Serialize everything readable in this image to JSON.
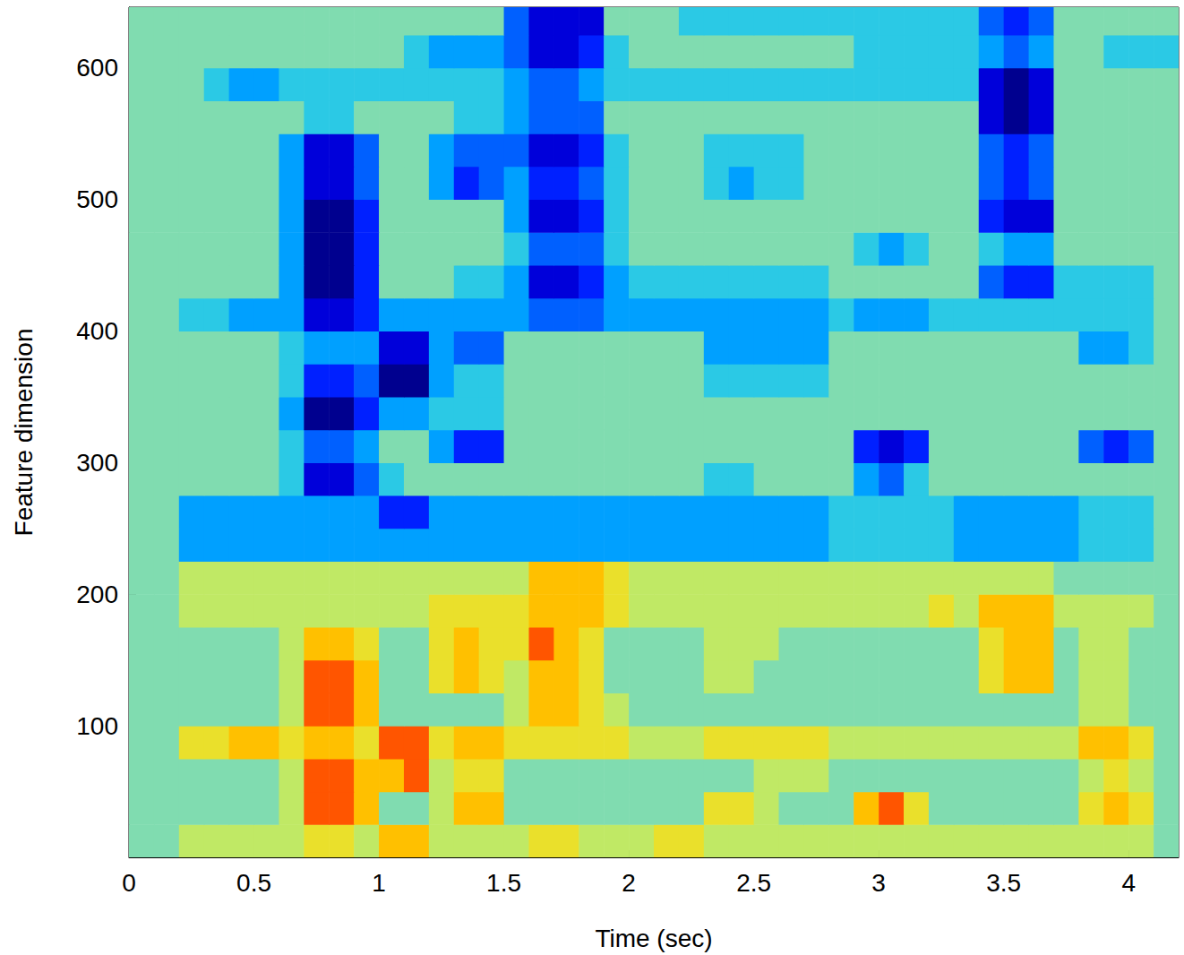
{
  "chart_data": {
    "type": "heatmap",
    "x_label": "Time (sec)",
    "y_label": "Feature dimension",
    "xlim": [
      0,
      4.2
    ],
    "ylim": [
      0,
      646
    ],
    "xticks": [
      0,
      0.5,
      1,
      1.5,
      2,
      2.5,
      3,
      3.5,
      4
    ],
    "yticks": [
      100,
      200,
      300,
      400,
      500,
      600
    ],
    "x_bins": [
      0,
      0.1,
      0.2,
      0.3,
      0.4,
      0.5,
      0.6,
      0.7,
      0.8,
      0.9,
      1,
      1.1,
      1.2,
      1.3,
      1.4,
      1.5,
      1.6,
      1.7,
      1.8,
      1.9,
      2,
      2.1,
      2.2,
      2.3,
      2.4,
      2.5,
      2.6,
      2.7,
      2.8,
      2.9,
      3,
      3.1,
      3.2,
      3.3,
      3.4,
      3.5,
      3.6,
      3.7,
      3.8,
      3.9,
      4,
      4.1,
      4.2
    ],
    "y_bins": [
      0,
      25,
      50,
      75,
      100,
      125,
      150,
      175,
      200,
      225,
      250,
      275,
      300,
      325,
      350,
      375,
      400,
      425,
      450,
      475,
      500,
      525,
      550,
      575,
      600,
      625,
      650
    ],
    "zlim": [
      -3,
      3
    ],
    "cells": [
      [
        0,
        0,
        0.5,
        0.5,
        0.5,
        0.5,
        0.5,
        1,
        1,
        0.5,
        1.5,
        1.5,
        0.5,
        0.5,
        0.5,
        0.5,
        1,
        1,
        0.5,
        0.5,
        0.5,
        1,
        1,
        0.5,
        0.5,
        0.5,
        0.5,
        0.5,
        0.5,
        0.5,
        0.5,
        0.5,
        0.5,
        0.5,
        0.5,
        0.5,
        0.5,
        0.5,
        0.5,
        0.5,
        0.5,
        0
      ],
      [
        0,
        0,
        0,
        0,
        0,
        0,
        0.5,
        2,
        2,
        1.5,
        0,
        0,
        0.5,
        1.5,
        1.5,
        0,
        0,
        0,
        0,
        0,
        0,
        0,
        0,
        1,
        1,
        0.5,
        0,
        0,
        0,
        1.5,
        2,
        1,
        0,
        0,
        0,
        0,
        0,
        0,
        1,
        1.5,
        1,
        0
      ],
      [
        0,
        0,
        0,
        0,
        0,
        0,
        0.5,
        2,
        2,
        1.5,
        1.5,
        2,
        0.5,
        1,
        1,
        0,
        0,
        0,
        0,
        0,
        0,
        0,
        0,
        0,
        0,
        0.5,
        0.5,
        0.5,
        0,
        0,
        0,
        0,
        0,
        0,
        0,
        0,
        0,
        0,
        0.5,
        1,
        0.5,
        0
      ],
      [
        0,
        0,
        1,
        1,
        1.5,
        1.5,
        1,
        1.5,
        1.5,
        1,
        2,
        2,
        1,
        1.5,
        1.5,
        1,
        1,
        1,
        1,
        1,
        0.5,
        0.5,
        0.5,
        1,
        1,
        1,
        1,
        1,
        0.5,
        0.5,
        0.5,
        0.5,
        0.5,
        0.5,
        0.5,
        0.5,
        0.5,
        0.5,
        1.5,
        1.5,
        1,
        0
      ],
      [
        0,
        0,
        0,
        0,
        0,
        0,
        0.5,
        2,
        2,
        1.5,
        0,
        0,
        0,
        0,
        0,
        0.5,
        1.5,
        1.5,
        1,
        0.5,
        0,
        0,
        0,
        0,
        0,
        0,
        0,
        0,
        0,
        0,
        0,
        0,
        0,
        0,
        0,
        0,
        0,
        0,
        0.5,
        0.5,
        0,
        0
      ],
      [
        0,
        0,
        0,
        0,
        0,
        0,
        0.5,
        2,
        2,
        1.5,
        0,
        0,
        1,
        1.5,
        1,
        0.5,
        1.5,
        1.5,
        1,
        0,
        0,
        0,
        0,
        0.5,
        0.5,
        0,
        0,
        0,
        0,
        0,
        0,
        0,
        0,
        0,
        1,
        1.5,
        1.5,
        0,
        0.5,
        0.5,
        0,
        0
      ],
      [
        0,
        0,
        0,
        0,
        0,
        0,
        0.5,
        1.5,
        1.5,
        1,
        0,
        0,
        1,
        1.5,
        1,
        1,
        2,
        1.5,
        1,
        0,
        0,
        0,
        0,
        0.5,
        0.5,
        0.5,
        0,
        0,
        0,
        0,
        0,
        0,
        0,
        0,
        1,
        1.5,
        1.5,
        0,
        0.5,
        0.5,
        0,
        0
      ],
      [
        0,
        0,
        0.5,
        0.5,
        0.5,
        0.5,
        0.5,
        0.5,
        0.5,
        0.5,
        0.5,
        0.5,
        1,
        1,
        1,
        1,
        1.5,
        1.5,
        1.5,
        1,
        0.5,
        0.5,
        0.5,
        0.5,
        0.5,
        0.5,
        0.5,
        0.5,
        0.5,
        0.5,
        0.5,
        0.5,
        1,
        0.5,
        1.5,
        1.5,
        1.5,
        0.5,
        0.5,
        0.5,
        0.5,
        0
      ],
      [
        0,
        0,
        0.5,
        0.5,
        0.5,
        0.5,
        0.5,
        0.5,
        0.5,
        0.5,
        0.5,
        0.5,
        0.5,
        0.5,
        0.5,
        0.5,
        1.5,
        1.5,
        1.5,
        1,
        0.5,
        0.5,
        0.5,
        0.5,
        0.5,
        0.5,
        0.5,
        0.5,
        0.5,
        0.5,
        0.5,
        0.5,
        0.5,
        0.5,
        0.5,
        0.5,
        0.5,
        0,
        0,
        0,
        0,
        0
      ],
      [
        0,
        0,
        -1,
        -1,
        -1,
        -1,
        -1,
        -1,
        -1,
        -1,
        -1,
        -1,
        -1,
        -1,
        -1,
        -1,
        -1,
        -1,
        -1,
        -1,
        -1,
        -1,
        -1,
        -1,
        -1,
        -1,
        -1,
        -1,
        -0.5,
        -0.5,
        -0.5,
        -0.5,
        -0.5,
        -1,
        -1,
        -1,
        -1,
        -1,
        -0.5,
        -0.5,
        -0.5,
        0
      ],
      [
        0,
        0,
        -1,
        -1,
        -1,
        -1,
        -1,
        -1,
        -1,
        -1,
        -2,
        -2,
        -1,
        -1,
        -1,
        -1,
        -1,
        -1,
        -1,
        -1,
        -1,
        -1,
        -1,
        -1,
        -1,
        -1,
        -1,
        -1,
        -0.5,
        -0.5,
        -0.5,
        -0.5,
        -0.5,
        -1,
        -1,
        -1,
        -1,
        -1,
        -0.5,
        -0.5,
        -0.5,
        0
      ],
      [
        0,
        0,
        0,
        0,
        0,
        0,
        -0.5,
        -2.5,
        -2.5,
        -1.5,
        -0.5,
        0,
        0,
        0,
        0,
        0,
        0,
        0,
        0,
        0,
        0,
        0,
        0,
        -0.5,
        -0.5,
        0,
        0,
        0,
        0,
        -1,
        -1.5,
        -0.5,
        0,
        0,
        0,
        0,
        0,
        0,
        0,
        0,
        0,
        0
      ],
      [
        0,
        0,
        0,
        0,
        0,
        0,
        -0.5,
        -1.5,
        -1.5,
        -1,
        0,
        0,
        -1,
        -2,
        -2,
        0,
        0,
        0,
        0,
        0,
        0,
        0,
        0,
        0,
        0,
        0,
        0,
        0,
        0,
        -2,
        -2.5,
        -2,
        0,
        0,
        0,
        0,
        0,
        0,
        -1.5,
        -2,
        -1.5,
        0
      ],
      [
        0,
        0,
        0,
        0,
        0,
        0,
        -1,
        -3,
        -3,
        -2,
        -1,
        -1,
        -0.5,
        -0.5,
        -0.5,
        0,
        0,
        0,
        0,
        0,
        0,
        0,
        0,
        0,
        0,
        0,
        0,
        0,
        0,
        0,
        0,
        0,
        0,
        0,
        0,
        0,
        0,
        0,
        0,
        0,
        0,
        0
      ],
      [
        0,
        0,
        0,
        0,
        0,
        0,
        -0.5,
        -2,
        -2,
        -1.5,
        -3,
        -3,
        -1,
        -0.5,
        -0.5,
        0,
        0,
        0,
        0,
        0,
        0,
        0,
        0,
        -0.5,
        -0.5,
        -0.5,
        -0.5,
        -0.5,
        0,
        0,
        0,
        0,
        0,
        0,
        0,
        0,
        0,
        0,
        0,
        0,
        0,
        0
      ],
      [
        0,
        0,
        0,
        0,
        0,
        0,
        -0.5,
        -1,
        -1,
        -1,
        -2.5,
        -2.5,
        -1,
        -1.5,
        -1.5,
        0,
        0,
        0,
        0,
        0,
        0,
        0,
        0,
        -1,
        -1,
        -1,
        -1,
        -1,
        0,
        0,
        0,
        0,
        0,
        0,
        0,
        0,
        0,
        0,
        -1,
        -1,
        -0.5,
        0
      ],
      [
        0,
        0,
        -0.5,
        -0.5,
        -1,
        -1,
        -1,
        -2.5,
        -2.5,
        -2,
        -1,
        -1,
        -1,
        -1,
        -1,
        -1,
        -1.5,
        -1.5,
        -1.5,
        -1,
        -1,
        -1,
        -1,
        -1,
        -1,
        -1,
        -1,
        -1,
        -0.5,
        -1,
        -1,
        -1,
        -0.5,
        -0.5,
        -0.5,
        -0.5,
        -0.5,
        -0.5,
        -0.5,
        -0.5,
        -0.5,
        0
      ],
      [
        0,
        0,
        0,
        0,
        0,
        0,
        -1,
        -3,
        -3,
        -2,
        0,
        0,
        0,
        -0.5,
        -0.5,
        -1,
        -2.5,
        -2.5,
        -2,
        -1,
        -0.5,
        -0.5,
        -0.5,
        -0.5,
        -0.5,
        -0.5,
        -0.5,
        -0.5,
        0,
        0,
        0,
        0,
        0,
        0,
        -1.5,
        -2,
        -2,
        -0.5,
        -0.5,
        -0.5,
        -0.5,
        0
      ],
      [
        0,
        0,
        0,
        0,
        0,
        0,
        -1,
        -3,
        -3,
        -2,
        0,
        0,
        0,
        0,
        0,
        -0.5,
        -1.5,
        -1.5,
        -1.5,
        -0.5,
        0,
        0,
        0,
        0,
        0,
        0,
        0,
        0,
        0,
        -0.5,
        -1,
        -0.5,
        0,
        0,
        -0.5,
        -1,
        -1,
        0,
        0,
        0,
        0,
        0
      ],
      [
        0,
        0,
        0,
        0,
        0,
        0,
        -1,
        -3,
        -3,
        -2,
        0,
        0,
        0,
        0,
        0,
        -1,
        -2.5,
        -2.5,
        -2,
        -0.5,
        0,
        0,
        0,
        0,
        0,
        0,
        0,
        0,
        0,
        0,
        0,
        0,
        0,
        0,
        -2,
        -2.5,
        -2.5,
        0,
        0,
        0,
        0,
        0
      ],
      [
        0,
        0,
        0,
        0,
        0,
        0,
        -1,
        -2.5,
        -2.5,
        -1.5,
        0,
        0,
        -1,
        -2,
        -1.5,
        -1,
        -2,
        -2,
        -1.5,
        -0.5,
        0,
        0,
        0,
        -0.5,
        -1,
        -0.5,
        -0.5,
        0,
        0,
        0,
        0,
        0,
        0,
        0,
        -1.5,
        -2,
        -1.5,
        0,
        0,
        0,
        0,
        0
      ],
      [
        0,
        0,
        0,
        0,
        0,
        0,
        -1,
        -2.5,
        -2.5,
        -1.5,
        0,
        0,
        -1,
        -1.5,
        -1.5,
        -1.5,
        -2.5,
        -2.5,
        -2,
        -0.5,
        0,
        0,
        0,
        -0.5,
        -0.5,
        -0.5,
        -0.5,
        0,
        0,
        0,
        0,
        0,
        0,
        0,
        -1.5,
        -2,
        -1.5,
        0,
        0,
        0,
        0,
        0
      ],
      [
        0,
        0,
        0,
        0,
        0,
        0,
        0,
        -0.5,
        -0.5,
        0,
        0,
        0,
        0,
        -0.5,
        -0.5,
        -1,
        -1.5,
        -1.5,
        -1.5,
        0,
        0,
        0,
        0,
        0,
        0,
        0,
        0,
        0,
        0,
        0,
        0,
        0,
        0,
        0,
        -2.5,
        -3,
        -2.5,
        0,
        0,
        0,
        0,
        0
      ],
      [
        0,
        0,
        0,
        -0.5,
        -1,
        -1,
        -0.5,
        -0.5,
        -0.5,
        -0.5,
        -0.5,
        -0.5,
        -0.5,
        -0.5,
        -0.5,
        -1,
        -1.5,
        -1.5,
        -1,
        -0.5,
        -0.5,
        -0.5,
        -0.5,
        -0.5,
        -0.5,
        -0.5,
        -0.5,
        -0.5,
        -0.5,
        -0.5,
        -0.5,
        -0.5,
        -0.5,
        -0.5,
        -2.5,
        -3,
        -2.5,
        0,
        0,
        0,
        0,
        0
      ],
      [
        0,
        0,
        0,
        0,
        0,
        0,
        0,
        0,
        0,
        0,
        0,
        -0.5,
        -1,
        -1,
        -1,
        -1.5,
        -2.5,
        -2.5,
        -2,
        -0.5,
        0,
        0,
        0,
        0,
        0,
        0,
        0,
        0,
        0,
        -0.5,
        -0.5,
        -0.5,
        -0.5,
        -0.5,
        -1,
        -1.5,
        -1,
        0,
        0,
        -0.5,
        -0.5,
        -0.5
      ],
      [
        0,
        0,
        0,
        0,
        0,
        0,
        0,
        0,
        0,
        0,
        0,
        0,
        0,
        0,
        0,
        -1.5,
        -2.5,
        -2.5,
        -2.5,
        0,
        0,
        0,
        -0.5,
        -0.5,
        -0.5,
        -0.5,
        -0.5,
        -0.5,
        -0.5,
        -0.5,
        -0.5,
        -0.5,
        -0.5,
        -0.5,
        -1.5,
        -2,
        -1.5,
        0,
        0,
        0,
        0,
        0
      ]
    ]
  }
}
